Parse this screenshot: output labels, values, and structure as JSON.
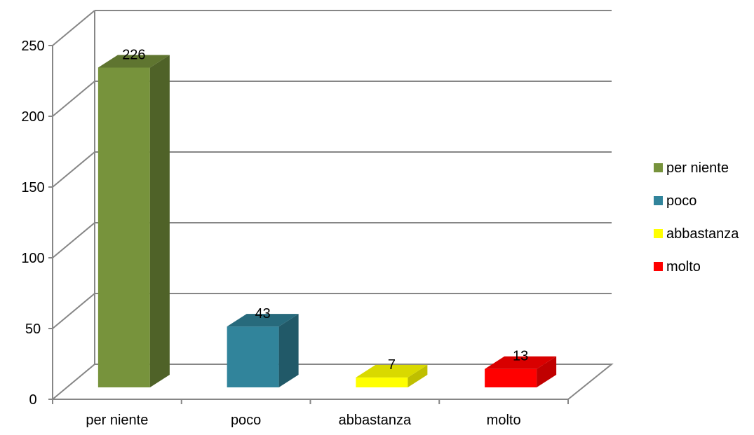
{
  "chart_data": {
    "type": "bar",
    "categories": [
      "per niente",
      "poco",
      "abbastanza",
      "molto"
    ],
    "values": [
      226,
      43,
      7,
      13
    ],
    "ylim": [
      0,
      250
    ],
    "yticks": [
      0,
      50,
      100,
      150,
      200,
      250
    ],
    "grid": true,
    "legend": "right",
    "legend_entries": [
      "per niente",
      "poco",
      "abbastanza",
      "molto"
    ],
    "colors": {
      "per niente": {
        "front": "#77933C",
        "side": "#4F6228",
        "top": "#5F7530"
      },
      "poco": {
        "front": "#31849B",
        "side": "#215968",
        "top": "#276A7C"
      },
      "abbastanza": {
        "front": "#FFFF00",
        "side": "#BFBF00",
        "top": "#D9D900"
      },
      "molto": {
        "front": "#FF0000",
        "side": "#C00000",
        "top": "#D90000"
      }
    }
  }
}
